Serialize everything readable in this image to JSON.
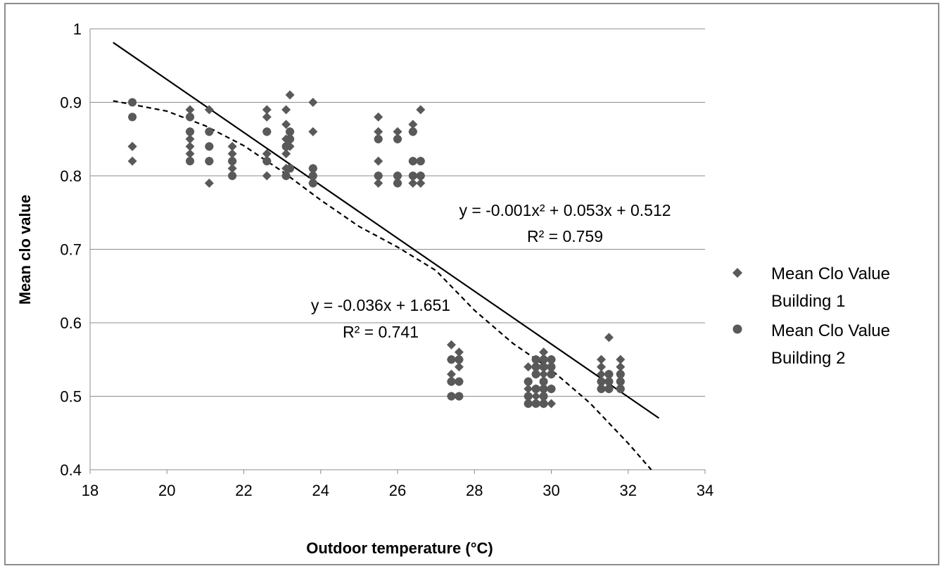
{
  "chart_data": {
    "type": "scatter",
    "xlabel": "Outdoor temperature (°C)",
    "ylabel": "Mean clo value",
    "xlim": [
      18,
      34
    ],
    "ylim": [
      0.4,
      1.0
    ],
    "x_ticks": [
      "18",
      "20",
      "22",
      "24",
      "26",
      "28",
      "30",
      "32",
      "34"
    ],
    "y_ticks": [
      "0.4",
      "0.5",
      "0.6",
      "0.7",
      "0.8",
      "0.9",
      "1"
    ],
    "grid": "horizontal",
    "legend_position": "right",
    "series": [
      {
        "name": "Mean Clo Value Building 1",
        "marker": "diamond",
        "color": "#595959",
        "points": [
          [
            19.1,
            0.82
          ],
          [
            19.1,
            0.84
          ],
          [
            19.1,
            0.84
          ],
          [
            20.6,
            0.83
          ],
          [
            20.6,
            0.84
          ],
          [
            20.6,
            0.85
          ],
          [
            20.6,
            0.86
          ],
          [
            20.6,
            0.88
          ],
          [
            20.6,
            0.89
          ],
          [
            21.1,
            0.79
          ],
          [
            21.1,
            0.82
          ],
          [
            21.1,
            0.84
          ],
          [
            21.1,
            0.86
          ],
          [
            21.1,
            0.89
          ],
          [
            21.7,
            0.8
          ],
          [
            21.7,
            0.81
          ],
          [
            21.7,
            0.82
          ],
          [
            21.7,
            0.83
          ],
          [
            21.7,
            0.84
          ],
          [
            22.6,
            0.8
          ],
          [
            22.6,
            0.82
          ],
          [
            22.6,
            0.83
          ],
          [
            22.6,
            0.86
          ],
          [
            22.6,
            0.88
          ],
          [
            22.6,
            0.89
          ],
          [
            23.1,
            0.8
          ],
          [
            23.1,
            0.81
          ],
          [
            23.1,
            0.83
          ],
          [
            23.1,
            0.85
          ],
          [
            23.1,
            0.87
          ],
          [
            23.1,
            0.89
          ],
          [
            23.2,
            0.84
          ],
          [
            23.2,
            0.85
          ],
          [
            23.2,
            0.86
          ],
          [
            23.2,
            0.91
          ],
          [
            23.8,
            0.79
          ],
          [
            23.8,
            0.8
          ],
          [
            23.8,
            0.81
          ],
          [
            23.8,
            0.86
          ],
          [
            23.8,
            0.9
          ],
          [
            25.5,
            0.79
          ],
          [
            25.5,
            0.8
          ],
          [
            25.5,
            0.82
          ],
          [
            25.5,
            0.85
          ],
          [
            25.5,
            0.86
          ],
          [
            25.5,
            0.88
          ],
          [
            26.0,
            0.79
          ],
          [
            26.0,
            0.8
          ],
          [
            26.0,
            0.85
          ],
          [
            26.0,
            0.86
          ],
          [
            26.4,
            0.79
          ],
          [
            26.4,
            0.8
          ],
          [
            26.4,
            0.82
          ],
          [
            26.4,
            0.86
          ],
          [
            26.4,
            0.87
          ],
          [
            26.6,
            0.79
          ],
          [
            26.6,
            0.8
          ],
          [
            26.6,
            0.82
          ],
          [
            26.6,
            0.89
          ],
          [
            27.4,
            0.5
          ],
          [
            27.4,
            0.52
          ],
          [
            27.4,
            0.53
          ],
          [
            27.4,
            0.55
          ],
          [
            27.4,
            0.57
          ],
          [
            27.6,
            0.5
          ],
          [
            27.6,
            0.52
          ],
          [
            27.6,
            0.54
          ],
          [
            27.6,
            0.55
          ],
          [
            27.6,
            0.56
          ],
          [
            29.4,
            0.49
          ],
          [
            29.4,
            0.5
          ],
          [
            29.4,
            0.51
          ],
          [
            29.4,
            0.52
          ],
          [
            29.4,
            0.54
          ],
          [
            29.6,
            0.5
          ],
          [
            29.6,
            0.51
          ],
          [
            29.6,
            0.53
          ],
          [
            29.6,
            0.55
          ],
          [
            29.8,
            0.49
          ],
          [
            29.8,
            0.51
          ],
          [
            29.8,
            0.53
          ],
          [
            29.8,
            0.55
          ],
          [
            29.8,
            0.56
          ],
          [
            30.0,
            0.49
          ],
          [
            30.0,
            0.51
          ],
          [
            30.0,
            0.53
          ],
          [
            30.0,
            0.55
          ],
          [
            31.3,
            0.51
          ],
          [
            31.3,
            0.52
          ],
          [
            31.3,
            0.53
          ],
          [
            31.3,
            0.54
          ],
          [
            31.3,
            0.55
          ],
          [
            31.5,
            0.51
          ],
          [
            31.5,
            0.52
          ],
          [
            31.5,
            0.53
          ],
          [
            31.5,
            0.58
          ],
          [
            31.8,
            0.51
          ],
          [
            31.8,
            0.52
          ],
          [
            31.8,
            0.53
          ],
          [
            31.8,
            0.54
          ],
          [
            31.8,
            0.55
          ]
        ]
      },
      {
        "name": "Mean Clo Value Building 2",
        "marker": "circle",
        "color": "#595959",
        "points": [
          [
            19.1,
            0.88
          ],
          [
            19.1,
            0.9
          ],
          [
            20.6,
            0.82
          ],
          [
            20.6,
            0.86
          ],
          [
            20.6,
            0.88
          ],
          [
            21.1,
            0.82
          ],
          [
            21.1,
            0.84
          ],
          [
            21.1,
            0.86
          ],
          [
            21.7,
            0.8
          ],
          [
            21.7,
            0.82
          ],
          [
            22.6,
            0.82
          ],
          [
            22.6,
            0.86
          ],
          [
            23.1,
            0.8
          ],
          [
            23.1,
            0.84
          ],
          [
            23.2,
            0.81
          ],
          [
            23.2,
            0.85
          ],
          [
            23.2,
            0.86
          ],
          [
            23.8,
            0.79
          ],
          [
            23.8,
            0.8
          ],
          [
            23.8,
            0.81
          ],
          [
            25.5,
            0.8
          ],
          [
            25.5,
            0.85
          ],
          [
            26.0,
            0.79
          ],
          [
            26.0,
            0.8
          ],
          [
            26.0,
            0.85
          ],
          [
            26.4,
            0.8
          ],
          [
            26.4,
            0.82
          ],
          [
            26.4,
            0.86
          ],
          [
            26.6,
            0.8
          ],
          [
            26.6,
            0.82
          ],
          [
            27.4,
            0.5
          ],
          [
            27.4,
            0.52
          ],
          [
            27.4,
            0.55
          ],
          [
            27.6,
            0.5
          ],
          [
            27.6,
            0.52
          ],
          [
            27.6,
            0.55
          ],
          [
            29.4,
            0.49
          ],
          [
            29.4,
            0.5
          ],
          [
            29.4,
            0.52
          ],
          [
            29.6,
            0.49
          ],
          [
            29.6,
            0.51
          ],
          [
            29.6,
            0.53
          ],
          [
            29.6,
            0.54
          ],
          [
            29.6,
            0.55
          ],
          [
            29.8,
            0.49
          ],
          [
            29.8,
            0.5
          ],
          [
            29.8,
            0.51
          ],
          [
            29.8,
            0.52
          ],
          [
            29.8,
            0.54
          ],
          [
            29.8,
            0.55
          ],
          [
            30.0,
            0.51
          ],
          [
            30.0,
            0.53
          ],
          [
            30.0,
            0.54
          ],
          [
            30.0,
            0.55
          ],
          [
            31.3,
            0.51
          ],
          [
            31.3,
            0.52
          ],
          [
            31.5,
            0.51
          ],
          [
            31.5,
            0.52
          ],
          [
            31.5,
            0.53
          ],
          [
            31.8,
            0.51
          ],
          [
            31.8,
            0.52
          ],
          [
            31.8,
            0.53
          ]
        ]
      }
    ],
    "trendlines": [
      {
        "type": "linear",
        "style": "solid",
        "color": "#000000",
        "coefficients": [
          -0.036,
          1.651
        ],
        "x_range": [
          18.6,
          32.8
        ],
        "equation": "y = -0.036x + 1.651",
        "r2": "R² = 0.741"
      },
      {
        "type": "polynomial",
        "style": "dashed",
        "color": "#000000",
        "control_points": [
          [
            18.6,
            0.902
          ],
          [
            20,
            0.888
          ],
          [
            21,
            0.868
          ],
          [
            22,
            0.841
          ],
          [
            23,
            0.806
          ],
          [
            24,
            0.767
          ],
          [
            25,
            0.731
          ],
          [
            26,
            0.703
          ],
          [
            27,
            0.671
          ],
          [
            28,
            0.617
          ],
          [
            29,
            0.572
          ],
          [
            30,
            0.536
          ],
          [
            31,
            0.491
          ],
          [
            32,
            0.436
          ],
          [
            32.6,
            0.4
          ]
        ],
        "equation": "y = -0.001x² + 0.053x + 0.512",
        "r2": "R² = 0.759"
      }
    ],
    "legend": [
      {
        "marker": "diamond",
        "lines": [
          "Mean Clo Value",
          "Building 1"
        ]
      },
      {
        "marker": "circle",
        "lines": [
          "Mean Clo Value",
          "Building 2"
        ]
      }
    ]
  }
}
